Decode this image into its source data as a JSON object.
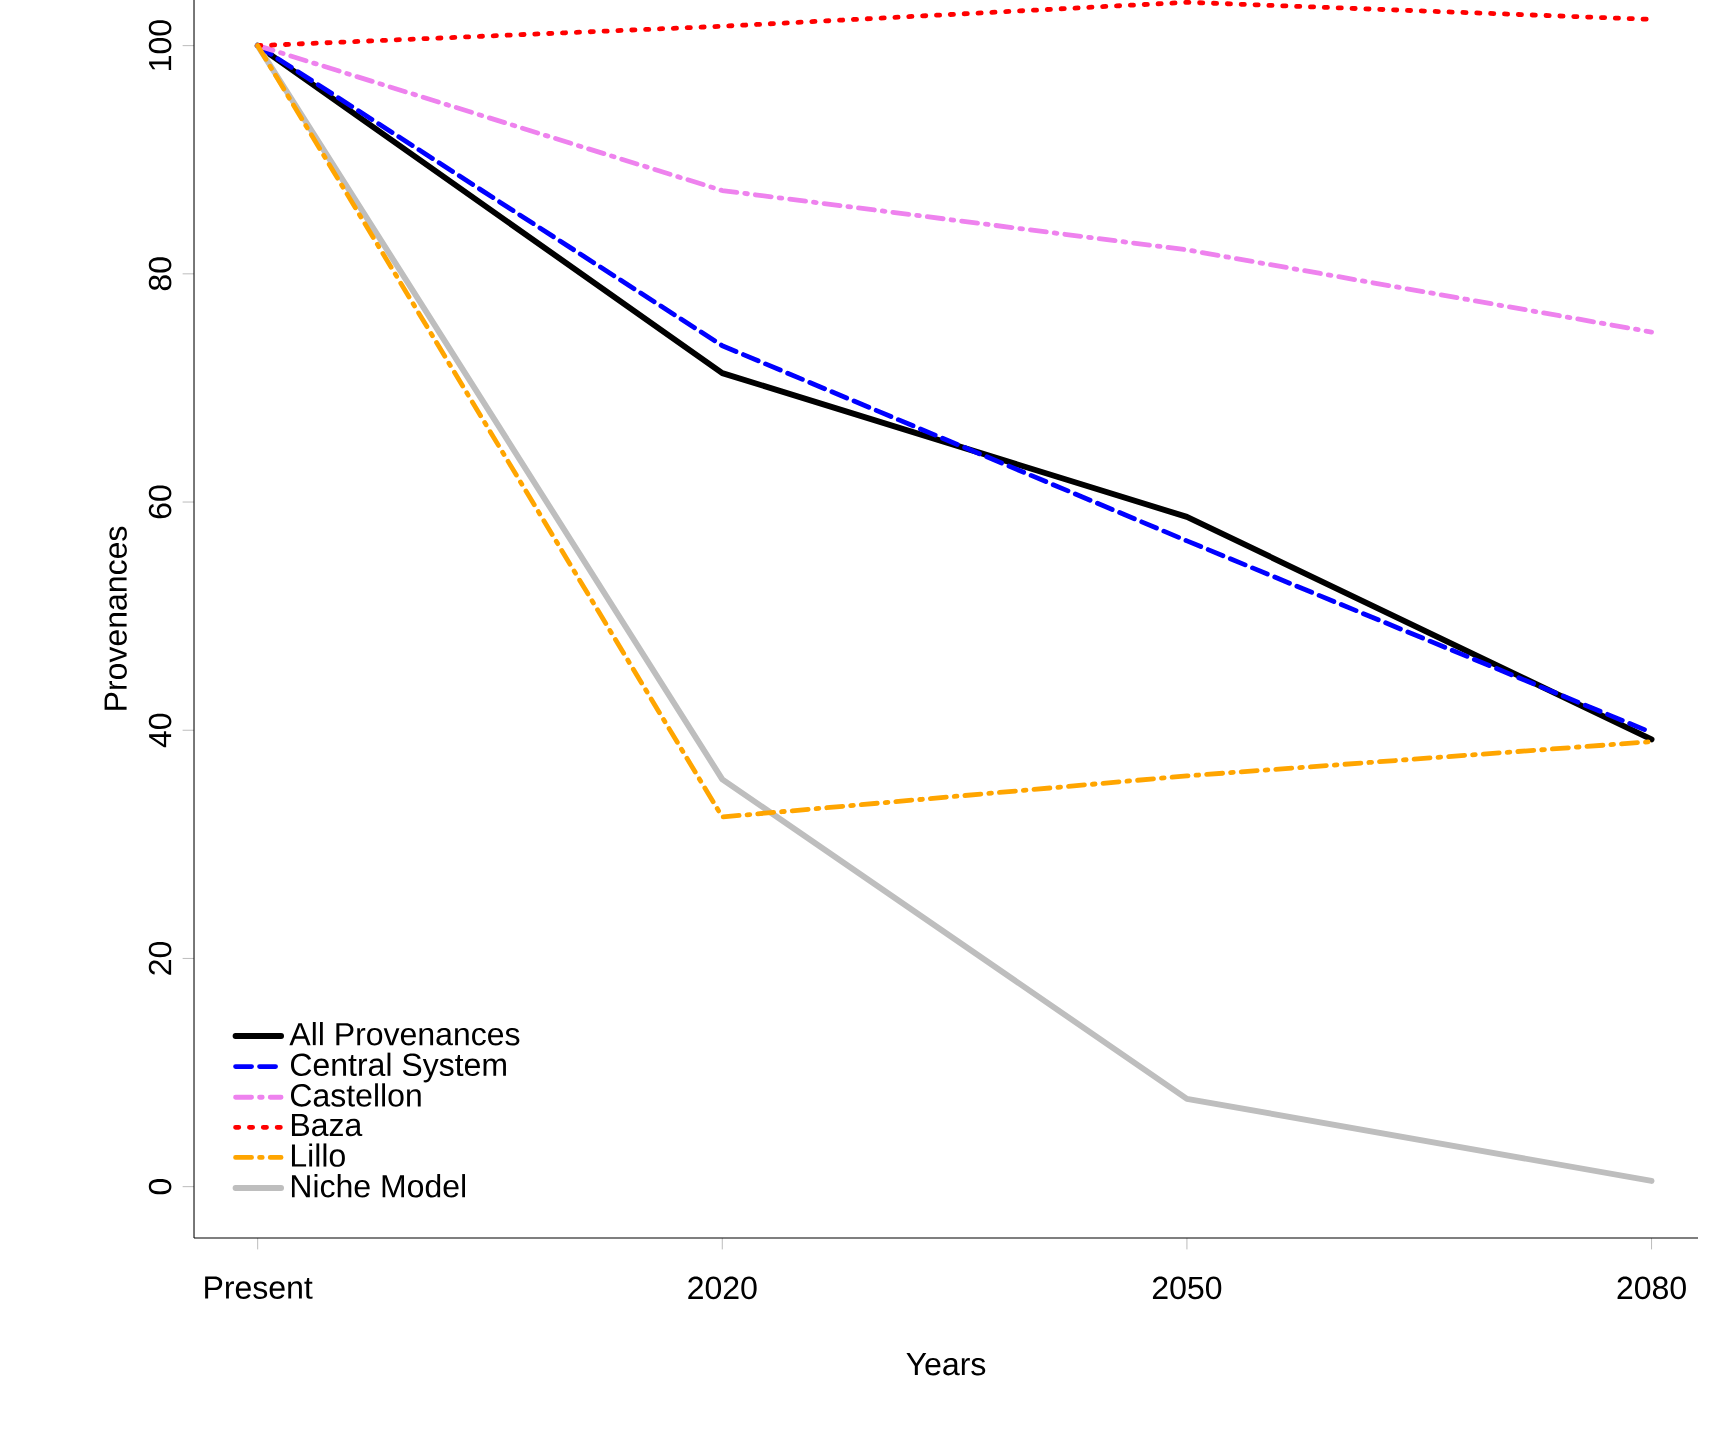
{
  "chart_data": {
    "type": "line",
    "xlabel": "Years",
    "ylabel": "Provenances",
    "categories": [
      "Present",
      "2020",
      "2050",
      "2080"
    ],
    "series": [
      {
        "name": "All Provenances",
        "color": "#000000",
        "line_style": "solid",
        "values": [
          100,
          71.3,
          58.7,
          39.2
        ]
      },
      {
        "name": "Central System",
        "color": "#0000ff",
        "line_style": "dashed",
        "values": [
          100,
          73.7,
          56.6,
          39.8
        ]
      },
      {
        "name": "Castellon",
        "color": "#ee82ee",
        "line_style": "dashdot",
        "values": [
          100,
          87.3,
          82.1,
          74.9
        ]
      },
      {
        "name": "Baza",
        "color": "#ff0000",
        "line_style": "dotted",
        "values": [
          100,
          101.7,
          103.8,
          102.3
        ]
      },
      {
        "name": "Lillo",
        "color": "#ffa500",
        "line_style": "dashdot",
        "values": [
          100,
          32.4,
          36.0,
          39.0
        ]
      },
      {
        "name": "Niche Model",
        "color": "#bebebe",
        "line_style": "solid",
        "values": [
          100,
          35.7,
          7.7,
          0.5
        ]
      }
    ],
    "ylim": [
      -4.5,
      104
    ],
    "yticks": [
      0,
      20,
      40,
      60,
      80,
      100
    ],
    "legend": "bottom left",
    "grid": false,
    "marker": "none"
  }
}
